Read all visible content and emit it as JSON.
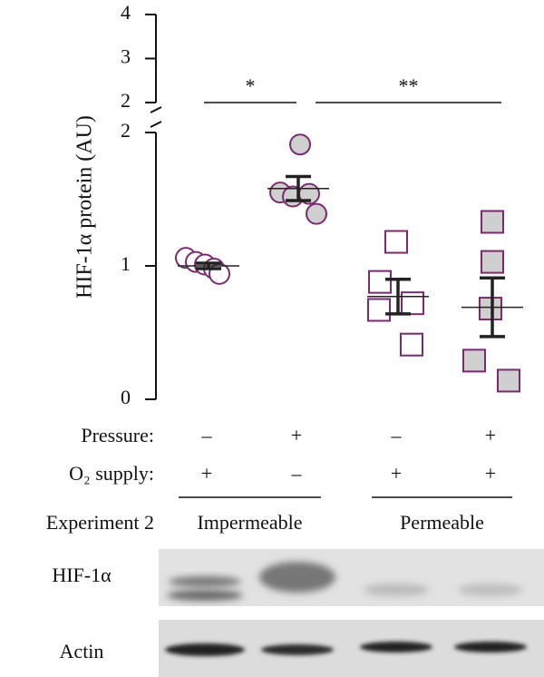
{
  "chart_data": {
    "type": "dot",
    "y_label": "HIF-1α protein (AU)",
    "ylim": [
      0,
      2
    ],
    "yticks": [
      0,
      1,
      2
    ],
    "ylim_upper": [
      2,
      4
    ],
    "yticks_upper": [
      2,
      3,
      4
    ],
    "series": [
      {
        "marker": "circle",
        "stroke": "#7b2a6f",
        "fill": "#ffffff",
        "values": [
          1.06,
          1.03,
          1.01,
          0.98,
          0.94
        ],
        "mean": 1.0,
        "error": 0.02
      },
      {
        "marker": "circle",
        "stroke": "#7b2a6f",
        "fill": "#cfcfcf",
        "values": [
          1.91,
          1.55,
          1.52,
          1.54,
          1.39
        ],
        "mean": 1.58,
        "error": 0.09
      },
      {
        "marker": "square",
        "stroke": "#7b2a6f",
        "fill": "#ffffff",
        "values": [
          1.18,
          0.88,
          0.72,
          0.67,
          0.41
        ],
        "mean": 0.77,
        "error": 0.13
      },
      {
        "marker": "square",
        "stroke": "#7b2a6f",
        "fill": "#cfcfcf",
        "values": [
          1.33,
          1.03,
          0.68,
          0.29,
          0.14
        ],
        "mean": 0.69,
        "error": 0.22
      }
    ],
    "annotations": [
      "*",
      "**"
    ],
    "conditions": [
      {
        "label": "Pressure:",
        "values": [
          "–",
          "+",
          "–",
          "+"
        ]
      },
      {
        "label": "O₂ supply:",
        "values": [
          "+",
          "–",
          "+",
          "+"
        ]
      }
    ],
    "experiment_label": "Experiment 2",
    "groups": [
      "Impermeable",
      "Permeable"
    ],
    "blot_labels": [
      "HIF-1α",
      "Actin"
    ]
  }
}
